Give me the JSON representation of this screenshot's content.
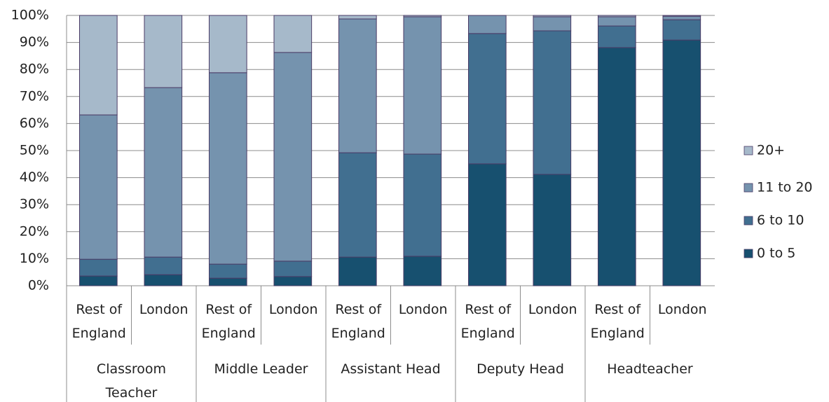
{
  "chart_data": {
    "type": "stacked_bar",
    "categories": [
      "Rest of\nEngland",
      "London",
      "Rest of\nEngland",
      "London",
      "Rest of\nEngland",
      "London",
      "Rest of\nEngland",
      "London",
      "Rest of\nEngland",
      "London"
    ],
    "groups": [
      "Classroom\nTeacher",
      "Middle Leader",
      "Assistant Head",
      "Deputy Head",
      "Headteacher"
    ],
    "series": [
      {
        "name": "0 to 5",
        "color": "#17506f",
        "values": [
          3.6,
          4.1,
          2.8,
          3.4,
          10.6,
          10.9,
          45.1,
          41.2,
          88.1,
          90.9
        ]
      },
      {
        "name": "6 to 10",
        "color": "#416f90",
        "values": [
          6.2,
          6.5,
          5.2,
          5.7,
          38.6,
          37.8,
          48.2,
          53.1,
          8.0,
          7.5
        ]
      },
      {
        "name": "11 to 20",
        "color": "#7593ae",
        "values": [
          53.4,
          62.7,
          70.8,
          77.2,
          49.5,
          50.8,
          6.7,
          5.2,
          3.4,
          1.3
        ]
      },
      {
        "name": "20+",
        "color": "#a6b9ca",
        "values": [
          36.8,
          26.7,
          21.2,
          13.7,
          1.3,
          0.5,
          0,
          0.5,
          0.5,
          0.3
        ]
      }
    ],
    "ylim": [
      0,
      100
    ],
    "yticks": [
      {
        "value": 0,
        "label": "0%"
      },
      {
        "value": 10,
        "label": "10%"
      },
      {
        "value": 20,
        "label": "20%"
      },
      {
        "value": 30,
        "label": "30%"
      },
      {
        "value": 40,
        "label": "40%"
      },
      {
        "value": 50,
        "label": "50%"
      },
      {
        "value": 60,
        "label": "60%"
      },
      {
        "value": 70,
        "label": "70%"
      },
      {
        "value": 80,
        "label": "80%"
      },
      {
        "value": 90,
        "label": "90%"
      },
      {
        "value": 100,
        "label": "100%"
      }
    ],
    "grid": true,
    "legend": "right"
  }
}
